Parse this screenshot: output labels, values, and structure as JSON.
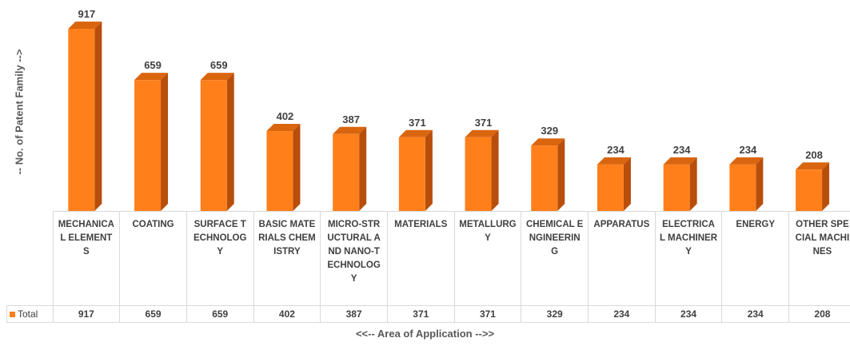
{
  "chart_data": {
    "type": "bar",
    "ylabel": "-- No. of Patent Family -->",
    "xlabel": "<<-- Area of Application -->>",
    "categories": [
      "MECHANICAL ELEMENTS",
      "COATING",
      "SURFACE TECHNOLOGY",
      "BASIC MATERIALS CHEMISTRY",
      "MICRO-STRUCTURAL AND NANO-TECHNOLOGY",
      "MATERIALS",
      "METALLURGY",
      "CHEMICAL ENGINEERING",
      "APPARATUS",
      "ELECTRICAL MACHINERY",
      "ENERGY",
      "OTHER SPECIAL MACHINES"
    ],
    "series": [
      {
        "name": "Total",
        "values": [
          917,
          659,
          659,
          402,
          387,
          371,
          371,
          329,
          234,
          234,
          234,
          208
        ]
      }
    ],
    "ylim": [
      0,
      917
    ],
    "grid": false,
    "legend": "data-table",
    "colors": {
      "bar_front": "#FF7F1A",
      "bar_side": "#B84E0B",
      "bar_top": "#D9650F"
    }
  }
}
